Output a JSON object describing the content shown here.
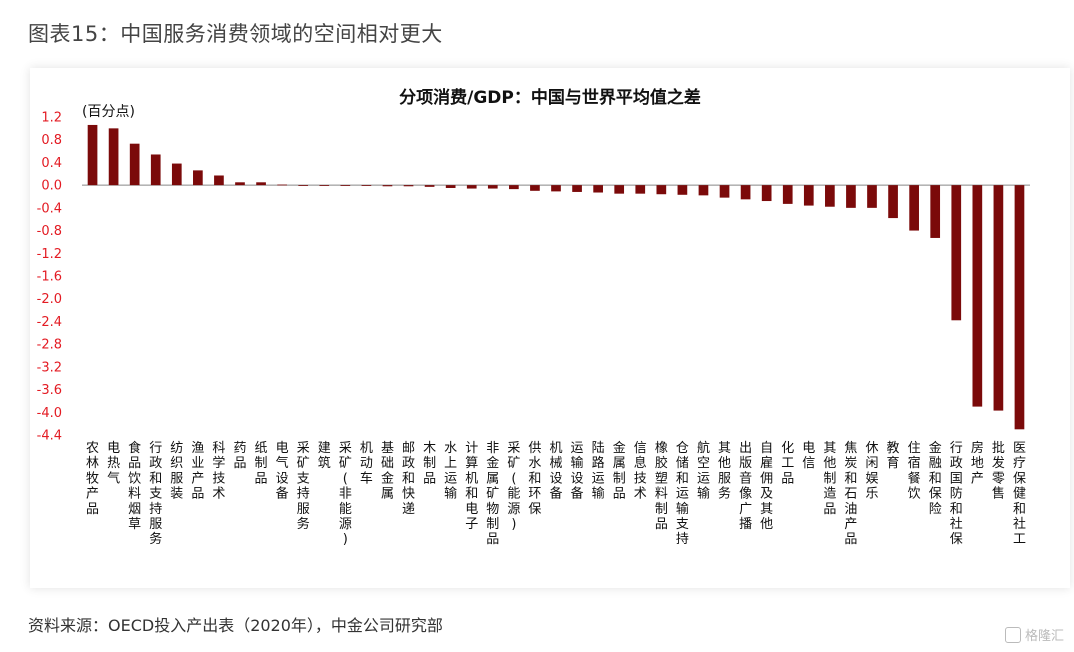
{
  "figure_title": "图表15：中国服务消费领域的空间相对更大",
  "source_note": "资料来源：OECD投入产出表（2020年），中金公司研究部",
  "watermark": "格隆汇",
  "colors": {
    "bar": "#7b0a0a",
    "axis_label": "#e31b23",
    "title": "#111111"
  },
  "chart_data": {
    "type": "bar",
    "title": "分项消费/GDP：中国与世界平均值之差",
    "ylabel": "(百分点)",
    "ylim": [
      -4.4,
      1.2
    ],
    "yticks": [
      1.2,
      0.8,
      0.4,
      0.0,
      -0.4,
      -0.8,
      -1.2,
      -1.6,
      -2.0,
      -2.4,
      -2.8,
      -3.2,
      -3.6,
      -4.0,
      -4.4
    ],
    "ytick_labels": [
      "1.2",
      "0.8",
      "0.4",
      "0.0",
      "-0.4",
      "-0.8",
      "-1.2",
      "-1.6",
      "-2.0",
      "-2.4",
      "-2.8",
      "-3.2",
      "-3.6",
      "-4.0",
      "-4.4"
    ],
    "categories": [
      "农林牧产品",
      "电热气",
      "食品饮料烟草",
      "行政和支持服务",
      "纺织服装",
      "渔业产品",
      "科学技术",
      "药品",
      "纸制品",
      "电气设备",
      "采矿支持服务",
      "建筑",
      "采矿(非能源)",
      "机动车",
      "基础金属",
      "邮政和快递",
      "木制品",
      "水上运输",
      "计算机和电子",
      "非金属矿物制品",
      "采矿(能源)",
      "供水和环保",
      "机械设备",
      "运输设备",
      "陆路运输",
      "金属制品",
      "信息技术",
      "橡胶塑料制品",
      "仓储和运输支持",
      "航空运输",
      "其他服务",
      "出版音像广播",
      "自雇佣及其他",
      "化工品",
      "电信",
      "其他制造品",
      "焦炭和石油产品",
      "休闲娱乐",
      "教育",
      "住宿餐饮",
      "金融和保险",
      "行政国防和社保",
      "房地产",
      "批发零售",
      "医疗保健和社工"
    ],
    "values": [
      1.06,
      1.0,
      0.73,
      0.54,
      0.38,
      0.26,
      0.17,
      0.05,
      0.05,
      0.01,
      0.0,
      0.0,
      0.0,
      0.0,
      -0.02,
      -0.02,
      -0.03,
      -0.05,
      -0.06,
      -0.06,
      -0.07,
      -0.1,
      -0.11,
      -0.12,
      -0.13,
      -0.15,
      -0.15,
      -0.16,
      -0.17,
      -0.18,
      -0.22,
      -0.25,
      -0.28,
      -0.33,
      -0.36,
      -0.38,
      -0.4,
      -0.4,
      -0.58,
      -0.8,
      -0.93,
      -2.38,
      -3.9,
      -3.97,
      -4.3
    ]
  }
}
